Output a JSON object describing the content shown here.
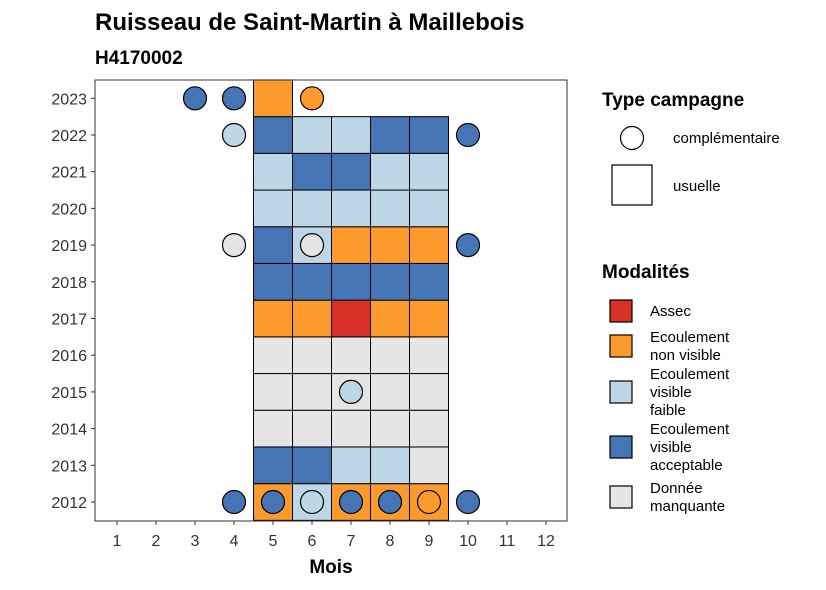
{
  "chart_data": {
    "type": "heatmap",
    "title": "Ruisseau de Saint-Martin à Maillebois",
    "subtitle": "H4170002",
    "xlabel": "Mois",
    "ylabel": "",
    "x_ticks": [
      "1",
      "2",
      "3",
      "4",
      "5",
      "6",
      "7",
      "8",
      "9",
      "10",
      "11",
      "12"
    ],
    "y_ticks": [
      "2012",
      "2013",
      "2014",
      "2015",
      "2016",
      "2017",
      "2018",
      "2019",
      "2020",
      "2021",
      "2022",
      "2023"
    ],
    "grid": false,
    "colors": {
      "assec": "#D73027",
      "non_visible": "#FD9A2E",
      "faible": "#BDD7E7",
      "acceptable": "#4575B4",
      "manquante": "#E5E5E5"
    },
    "legend_type": {
      "title": "Type campagne",
      "placement": "right",
      "items": [
        {
          "shape": "circle",
          "label": "complémentaire"
        },
        {
          "shape": "square",
          "label": "usuelle"
        }
      ]
    },
    "legend_modalites": {
      "title": "Modalités",
      "placement": "right",
      "items": [
        {
          "key": "assec",
          "lines": [
            "Assec"
          ]
        },
        {
          "key": "non_visible",
          "lines": [
            "Ecoulement",
            "non visible"
          ]
        },
        {
          "key": "faible",
          "lines": [
            "Ecoulement",
            "visible",
            "faible"
          ]
        },
        {
          "key": "acceptable",
          "lines": [
            "Ecoulement",
            "visible",
            "acceptable"
          ]
        },
        {
          "key": "manquante",
          "lines": [
            "Donnée",
            "manquante"
          ]
        }
      ]
    },
    "squares": [
      {
        "year": 2012,
        "month": 5,
        "m": "non_visible"
      },
      {
        "year": 2012,
        "month": 6,
        "m": "faible"
      },
      {
        "year": 2012,
        "month": 7,
        "m": "non_visible"
      },
      {
        "year": 2012,
        "month": 8,
        "m": "non_visible"
      },
      {
        "year": 2012,
        "month": 9,
        "m": "non_visible"
      },
      {
        "year": 2013,
        "month": 5,
        "m": "acceptable"
      },
      {
        "year": 2013,
        "month": 6,
        "m": "acceptable"
      },
      {
        "year": 2013,
        "month": 7,
        "m": "faible"
      },
      {
        "year": 2013,
        "month": 8,
        "m": "faible"
      },
      {
        "year": 2013,
        "month": 9,
        "m": "manquante"
      },
      {
        "year": 2014,
        "month": 5,
        "m": "manquante"
      },
      {
        "year": 2014,
        "month": 6,
        "m": "manquante"
      },
      {
        "year": 2014,
        "month": 7,
        "m": "manquante"
      },
      {
        "year": 2014,
        "month": 8,
        "m": "manquante"
      },
      {
        "year": 2014,
        "month": 9,
        "m": "manquante"
      },
      {
        "year": 2015,
        "month": 5,
        "m": "manquante"
      },
      {
        "year": 2015,
        "month": 6,
        "m": "manquante"
      },
      {
        "year": 2015,
        "month": 7,
        "m": "manquante"
      },
      {
        "year": 2015,
        "month": 8,
        "m": "manquante"
      },
      {
        "year": 2015,
        "month": 9,
        "m": "manquante"
      },
      {
        "year": 2016,
        "month": 5,
        "m": "manquante"
      },
      {
        "year": 2016,
        "month": 6,
        "m": "manquante"
      },
      {
        "year": 2016,
        "month": 7,
        "m": "manquante"
      },
      {
        "year": 2016,
        "month": 8,
        "m": "manquante"
      },
      {
        "year": 2016,
        "month": 9,
        "m": "manquante"
      },
      {
        "year": 2017,
        "month": 5,
        "m": "non_visible"
      },
      {
        "year": 2017,
        "month": 6,
        "m": "non_visible"
      },
      {
        "year": 2017,
        "month": 7,
        "m": "assec"
      },
      {
        "year": 2017,
        "month": 8,
        "m": "non_visible"
      },
      {
        "year": 2017,
        "month": 9,
        "m": "non_visible"
      },
      {
        "year": 2018,
        "month": 5,
        "m": "acceptable"
      },
      {
        "year": 2018,
        "month": 6,
        "m": "acceptable"
      },
      {
        "year": 2018,
        "month": 7,
        "m": "acceptable"
      },
      {
        "year": 2018,
        "month": 8,
        "m": "acceptable"
      },
      {
        "year": 2018,
        "month": 9,
        "m": "acceptable"
      },
      {
        "year": 2019,
        "month": 5,
        "m": "acceptable"
      },
      {
        "year": 2019,
        "month": 6,
        "m": "faible"
      },
      {
        "year": 2019,
        "month": 7,
        "m": "non_visible"
      },
      {
        "year": 2019,
        "month": 8,
        "m": "non_visible"
      },
      {
        "year": 2019,
        "month": 9,
        "m": "non_visible"
      },
      {
        "year": 2020,
        "month": 5,
        "m": "faible"
      },
      {
        "year": 2020,
        "month": 6,
        "m": "faible"
      },
      {
        "year": 2020,
        "month": 7,
        "m": "faible"
      },
      {
        "year": 2020,
        "month": 8,
        "m": "faible"
      },
      {
        "year": 2020,
        "month": 9,
        "m": "faible"
      },
      {
        "year": 2021,
        "month": 5,
        "m": "faible"
      },
      {
        "year": 2021,
        "month": 6,
        "m": "acceptable"
      },
      {
        "year": 2021,
        "month": 7,
        "m": "acceptable"
      },
      {
        "year": 2021,
        "month": 8,
        "m": "faible"
      },
      {
        "year": 2021,
        "month": 9,
        "m": "faible"
      },
      {
        "year": 2022,
        "month": 5,
        "m": "acceptable"
      },
      {
        "year": 2022,
        "month": 6,
        "m": "faible"
      },
      {
        "year": 2022,
        "month": 7,
        "m": "faible"
      },
      {
        "year": 2022,
        "month": 8,
        "m": "acceptable"
      },
      {
        "year": 2022,
        "month": 9,
        "m": "acceptable"
      },
      {
        "year": 2023,
        "month": 5,
        "m": "non_visible"
      }
    ],
    "circles": [
      {
        "year": 2012,
        "month": 4,
        "m": "acceptable"
      },
      {
        "year": 2012,
        "month": 5,
        "m": "acceptable"
      },
      {
        "year": 2012,
        "month": 6,
        "m": "faible"
      },
      {
        "year": 2012,
        "month": 7,
        "m": "acceptable"
      },
      {
        "year": 2012,
        "month": 8,
        "m": "acceptable"
      },
      {
        "year": 2012,
        "month": 9,
        "m": "non_visible"
      },
      {
        "year": 2012,
        "month": 10,
        "m": "acceptable"
      },
      {
        "year": 2015,
        "month": 7,
        "m": "faible"
      },
      {
        "year": 2019,
        "month": 4,
        "m": "manquante"
      },
      {
        "year": 2019,
        "month": 6,
        "m": "manquante"
      },
      {
        "year": 2019,
        "month": 10,
        "m": "acceptable"
      },
      {
        "year": 2022,
        "month": 4,
        "m": "faible"
      },
      {
        "year": 2022,
        "month": 10,
        "m": "acceptable"
      },
      {
        "year": 2023,
        "month": 3,
        "m": "acceptable"
      },
      {
        "year": 2023,
        "month": 4,
        "m": "acceptable"
      },
      {
        "year": 2023,
        "month": 6,
        "m": "non_visible"
      }
    ]
  }
}
